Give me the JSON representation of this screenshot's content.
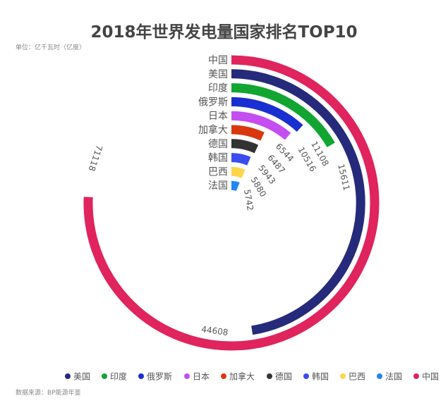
{
  "chart_data": {
    "type": "bar",
    "subtype": "polar-radial-bar",
    "title": "2018年世界发电量国家排名TOP10",
    "unit": "单位：亿千瓦时（亿度）",
    "source": "数据来源：BP能源年鉴",
    "angle_max": 94000,
    "categories": [
      "中国",
      "美国",
      "印度",
      "俄罗斯",
      "日本",
      "加拿大",
      "德国",
      "韩国",
      "巴西",
      "法国"
    ],
    "values": [
      71118,
      44608,
      15611,
      11108,
      10516,
      6544,
      6487,
      5943,
      5880,
      5742
    ],
    "colors": [
      "#e0245e",
      "#262a7a",
      "#12a532",
      "#1a2fd1",
      "#c44ef0",
      "#d9380f",
      "#333333",
      "#3b4df0",
      "#ffd54a",
      "#1e88f0"
    ],
    "legend": {
      "placement": "bottom",
      "entries": [
        "美国",
        "印度",
        "俄罗斯",
        "日本",
        "加拿大",
        "德国",
        "韩国",
        "巴西",
        "法国",
        "中国"
      ]
    }
  }
}
